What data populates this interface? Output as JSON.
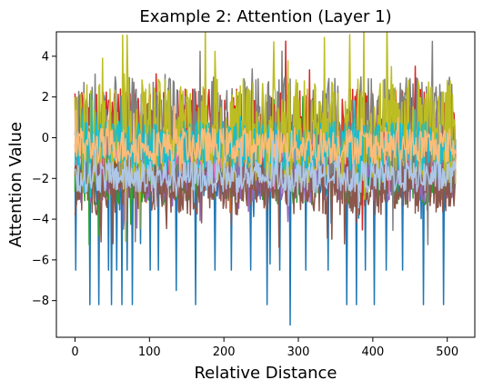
{
  "chart_data": {
    "type": "line",
    "title": "Example 2: Attention (Layer 1)",
    "xlabel": "Relative Distance",
    "ylabel": "Attention Value",
    "xlim": [
      -25,
      537
    ],
    "ylim": [
      -9.8,
      5.2
    ],
    "xticks": [
      0,
      100,
      200,
      300,
      400,
      500
    ],
    "yticks": [
      -8,
      -6,
      -4,
      -2,
      0,
      2,
      4
    ],
    "grid": false,
    "legend": "none",
    "n_points": 512,
    "series": [
      {
        "color": "#1f77b4",
        "base": -1.8,
        "amp": 1.1,
        "spikes": {
          "x": [
            1,
            20,
            32,
            45,
            49,
            56,
            63,
            70,
            77,
            88,
            101,
            112,
            136,
            162,
            188,
            210,
            236,
            258,
            262,
            275,
            289,
            310,
            340,
            365,
            378,
            390,
            402,
            418,
            440,
            468,
            495
          ],
          "y": [
            -6.5,
            -8.2,
            -8.2,
            -6.5,
            -8.2,
            -6.5,
            -8.2,
            -6.5,
            -8.2,
            -5.2,
            -6.5,
            -6.5,
            -7.5,
            -8.2,
            -6.5,
            -6.5,
            -6.5,
            -8.2,
            -6.2,
            -6.5,
            -9.2,
            -6.5,
            -6.5,
            -8.2,
            -8.2,
            -6.5,
            -8.2,
            -6.5,
            -6.5,
            -8.2,
            -8.2
          ]
        }
      },
      {
        "color": "#ff7f0e",
        "base": -0.6,
        "amp": 1.4
      },
      {
        "color": "#2ca02c",
        "base": -1.5,
        "amp": 1.8
      },
      {
        "color": "#d62728",
        "base": 0.2,
        "amp": 2.2
      },
      {
        "color": "#9467bd",
        "base": -1.6,
        "amp": 1.6
      },
      {
        "color": "#8c564b",
        "base": -2.2,
        "amp": 1.6
      },
      {
        "color": "#e377c2",
        "base": -0.5,
        "amp": 1.0
      },
      {
        "color": "#7f7f7f",
        "base": 0.4,
        "amp": 2.6
      },
      {
        "color": "#bcbd22",
        "base": 0.3,
        "amp": 2.6
      },
      {
        "color": "#17becf",
        "base": -0.4,
        "amp": 1.2
      },
      {
        "color": "#ffbb78",
        "base": -0.4,
        "amp": 0.9
      },
      {
        "color": "#aec7e8",
        "base": -1.9,
        "amp": 0.8
      }
    ]
  }
}
